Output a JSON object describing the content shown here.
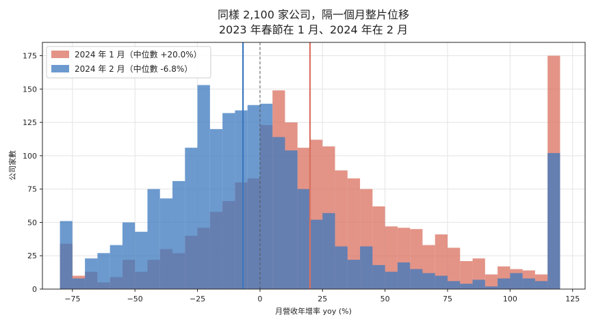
{
  "chart_data": {
    "type": "bar",
    "title": "同樣 2,100 家公司，隔一個月整片位移",
    "subtitle": "2023 年春節在 1 月、2024 年在 2 月",
    "xlabel": "月營收年增率 yoy (%)",
    "ylabel": "公司家數",
    "xlim": [
      -87,
      130
    ],
    "ylim": [
      0,
      185
    ],
    "xticks": [
      -75,
      -50,
      -25,
      0,
      25,
      50,
      75,
      100,
      125
    ],
    "yticks": [
      0,
      25,
      50,
      75,
      100,
      125,
      150,
      175
    ],
    "grid": true,
    "legend_position": "top-left",
    "bin_start": -80,
    "bin_width": 5,
    "series": [
      {
        "name": "2024 年 1 月（中位數 +20.0%）",
        "color": "#d9705f",
        "median": 20.0,
        "values": [
          34,
          10,
          13,
          5,
          9,
          22,
          13,
          22,
          30,
          27,
          40,
          46,
          58,
          66,
          80,
          83,
          123,
          149,
          125,
          106,
          112,
          107,
          89,
          83,
          75,
          62,
          47,
          46,
          45,
          33,
          41,
          31,
          21,
          23,
          11,
          17,
          15,
          14,
          11,
          175
        ]
      },
      {
        "name": "2024 年 2 月（中位數 -6.8%）",
        "color": "#3b78bf",
        "median": -6.8,
        "values": [
          51,
          8,
          23,
          27,
          33,
          50,
          43,
          75,
          68,
          81,
          106,
          153,
          120,
          132,
          134,
          138,
          139,
          114,
          104,
          75,
          52,
          57,
          32,
          22,
          32,
          18,
          13,
          20,
          15,
          12,
          10,
          6,
          4,
          7,
          2,
          8,
          12,
          8,
          6,
          102
        ]
      }
    ]
  }
}
